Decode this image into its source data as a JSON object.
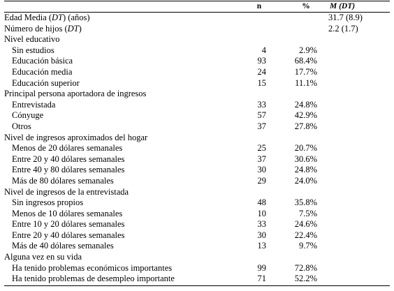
{
  "header": {
    "label": "",
    "n": "n",
    "pct": "%",
    "m": "M (DT)"
  },
  "rows": [
    {
      "label_parts": [
        "Edad Media (",
        "DT",
        ") (años)"
      ],
      "level": 0,
      "n": "",
      "pct": "",
      "m": "31.7 (8.9)"
    },
    {
      "label_parts": [
        "Número de hijos (",
        "DT",
        ")"
      ],
      "level": 0,
      "n": "",
      "pct": "",
      "m": "2.2 (1.7)"
    },
    {
      "label": "Nivel educativo",
      "level": 0,
      "n": "",
      "pct": "",
      "m": ""
    },
    {
      "label": "Sin estudios",
      "level": 1,
      "n": "4",
      "pct": "2.9%",
      "m": ""
    },
    {
      "label": "Educación básica",
      "level": 1,
      "n": "93",
      "pct": "68.4%",
      "m": ""
    },
    {
      "label": "Educación media",
      "level": 1,
      "n": "24",
      "pct": "17.7%",
      "m": ""
    },
    {
      "label": "Educación superior",
      "level": 1,
      "n": "15",
      "pct": "11.1%",
      "m": ""
    },
    {
      "label": "Principal persona aportadora de ingresos",
      "level": 0,
      "n": "",
      "pct": "",
      "m": ""
    },
    {
      "label": "Entrevistada",
      "level": 1,
      "n": "33",
      "pct": "24.8%",
      "m": ""
    },
    {
      "label": "Cónyuge",
      "level": 1,
      "n": "57",
      "pct": "42.9%",
      "m": ""
    },
    {
      "label": "Otros",
      "level": 1,
      "n": "37",
      "pct": "27.8%",
      "m": ""
    },
    {
      "label": "Nivel de ingresos aproximados del hogar",
      "level": 0,
      "n": "",
      "pct": "",
      "m": ""
    },
    {
      "label": "Menos de 20 dólares semanales",
      "level": 1,
      "n": "25",
      "pct": "20.7%",
      "m": ""
    },
    {
      "label": "Entre 20 y 40 dólares semanales",
      "level": 1,
      "n": "37",
      "pct": "30.6%",
      "m": ""
    },
    {
      "label": "Entre 40 y 80 dólares semanales",
      "level": 1,
      "n": "30",
      "pct": "24.8%",
      "m": ""
    },
    {
      "label": "Más de 80 dólares semanales",
      "level": 1,
      "n": "29",
      "pct": "24.0%",
      "m": ""
    },
    {
      "label": "Nivel de ingresos de la entrevistada",
      "level": 0,
      "n": "",
      "pct": "",
      "m": ""
    },
    {
      "label": "Sin ingresos propios",
      "level": 1,
      "n": "48",
      "pct": "35.8%",
      "m": ""
    },
    {
      "label": "Menos de 10 dólares semanales",
      "level": 1,
      "n": "10",
      "pct": "7.5%",
      "m": ""
    },
    {
      "label": "Entre 10 y 20 dólares semanales",
      "level": 1,
      "n": "33",
      "pct": "24.6%",
      "m": ""
    },
    {
      "label": "Entre 20 y 40 dólares semanales",
      "level": 1,
      "n": "30",
      "pct": "22.4%",
      "m": ""
    },
    {
      "label": "Más de 40 dólares semanales",
      "level": 1,
      "n": "13",
      "pct": "9.7%",
      "m": ""
    },
    {
      "label": "Alguna vez en su vida",
      "level": 0,
      "n": "",
      "pct": "",
      "m": ""
    },
    {
      "label": "Ha tenido problemas económicos importantes",
      "level": 1,
      "n": "99",
      "pct": "72.8%",
      "m": ""
    },
    {
      "label": "Ha tenido problemas de desempleo importante",
      "level": 1,
      "n": "71",
      "pct": "52.2%",
      "m": ""
    }
  ]
}
